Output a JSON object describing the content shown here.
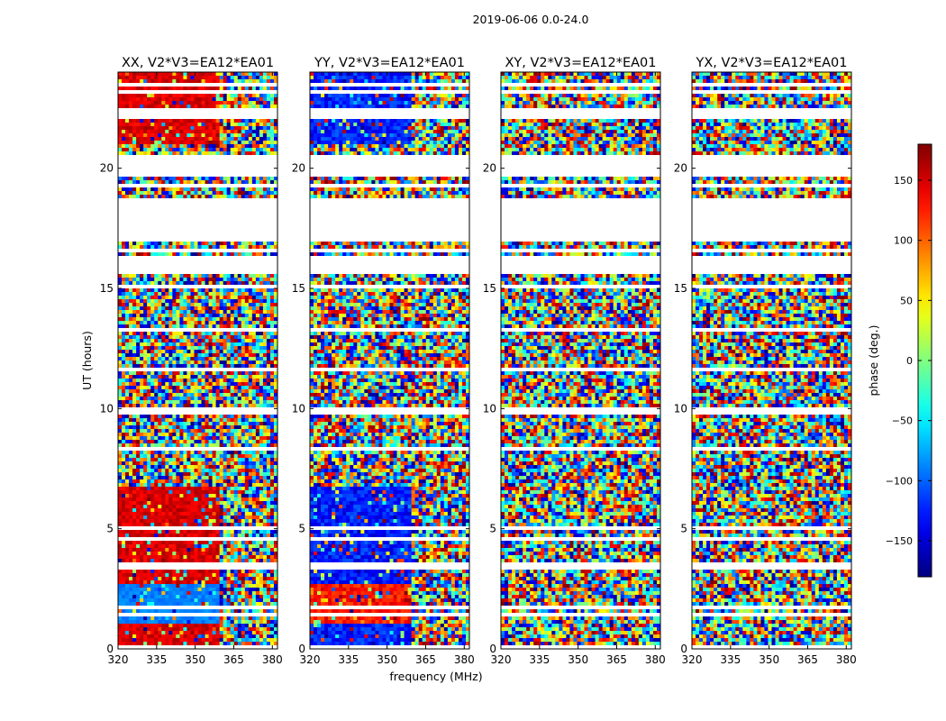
{
  "chart_data": {
    "type": "heatmap",
    "suptitle": "2019-06-06 0.0-24.0",
    "xlabel": "frequency (MHz)",
    "ylabel": "UT (hours)",
    "xlim": [
      320,
      382
    ],
    "ylim": [
      0,
      24
    ],
    "xticks": [
      "320",
      "335",
      "350",
      "365",
      "380"
    ],
    "yticks": [
      "0",
      "5",
      "10",
      "15",
      "20"
    ],
    "panels": [
      {
        "title": "XX, V2*V3=EA12*EA01",
        "pol": "XX",
        "pattern": "coherent-red"
      },
      {
        "title": "YY, V2*V3=EA12*EA01",
        "pol": "YY",
        "pattern": "coherent-blue"
      },
      {
        "title": "XY, V2*V3=EA12*EA01",
        "pol": "XY",
        "pattern": "noise"
      },
      {
        "title": "YX, V2*V3=EA12*EA01",
        "pol": "YX",
        "pattern": "noise"
      }
    ],
    "flagged_ut_ranges": [
      [
        16.9,
        18.7
      ],
      [
        19.6,
        20.5
      ],
      [
        22.1,
        22.4
      ],
      [
        15.6,
        16.3
      ]
    ],
    "colorbar": {
      "label": "phase (deg.)",
      "range": [
        -180,
        180
      ],
      "ticks": [
        "150",
        "100",
        "50",
        "0",
        "−50",
        "−100",
        "−150"
      ],
      "colormap": "jet"
    }
  }
}
